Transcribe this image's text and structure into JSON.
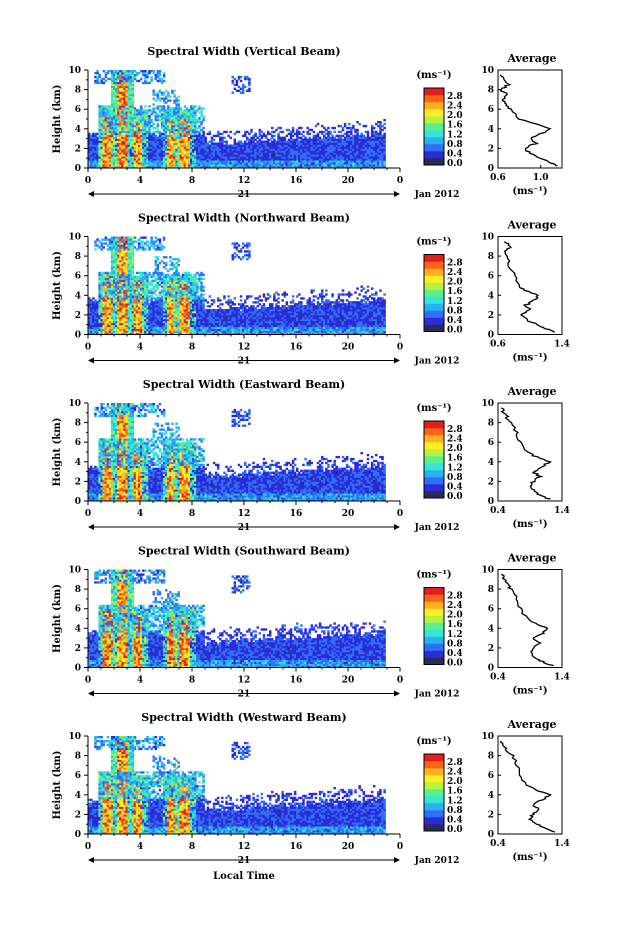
{
  "figure": {
    "xlabel": "Local Time",
    "day_label": "21",
    "date_label": "Jan 2012",
    "colorbar_unit": "(ms⁻¹)",
    "profile_title": "Average",
    "profile_xunit": "(ms⁻¹)"
  },
  "colorbar": {
    "range": [
      0.0,
      2.8
    ],
    "tick_labels": [
      "0.0",
      "0.4",
      "0.8",
      "1.2",
      "1.6",
      "2.0",
      "2.4",
      "2.8"
    ],
    "colors": [
      "#2a2a5a",
      "#2b2bd8",
      "#2f6ff5",
      "#27b3f2",
      "#35e6d6",
      "#5cf08a",
      "#b6f23f",
      "#ffee25",
      "#ffb01f",
      "#ff6317",
      "#e21f1f"
    ]
  },
  "chart_data": [
    {
      "type": "heatmap",
      "title": "Spectral Width (Vertical Beam)",
      "ylabel": "Height (km)",
      "xlim": [
        0,
        24
      ],
      "ylim": [
        0,
        10
      ],
      "xticks": [
        "0",
        "4",
        "8",
        "12",
        "16",
        "20",
        "0"
      ],
      "yticks": [
        "0",
        "2",
        "4",
        "6",
        "8",
        "10"
      ],
      "value_range": [
        0.0,
        2.8
      ],
      "profile": {
        "xlim": [
          0.6,
          1.2
        ],
        "xticks": [
          "0.6",
          "1.0"
        ],
        "yticks": [
          "0",
          "2",
          "4",
          "6",
          "8",
          "10"
        ],
        "points": [
          [
            1.15,
            0.2
          ],
          [
            1.1,
            0.5
          ],
          [
            1.0,
            1.0
          ],
          [
            0.9,
            1.5
          ],
          [
            0.85,
            2.0
          ],
          [
            0.95,
            2.5
          ],
          [
            0.9,
            3.0
          ],
          [
            1.0,
            3.5
          ],
          [
            1.1,
            4.0
          ],
          [
            0.95,
            4.5
          ],
          [
            0.8,
            5.0
          ],
          [
            0.72,
            6.0
          ],
          [
            0.68,
            6.5
          ],
          [
            0.65,
            7.0
          ],
          [
            0.7,
            7.5
          ],
          [
            0.62,
            8.0
          ],
          [
            0.7,
            8.5
          ],
          [
            0.66,
            9.0
          ],
          [
            0.62,
            9.5
          ]
        ]
      }
    },
    {
      "type": "heatmap",
      "title": "Spectral Width (Northward Beam)",
      "ylabel": "Height (km)",
      "xlim": [
        0,
        24
      ],
      "ylim": [
        0,
        10
      ],
      "xticks": [
        "0",
        "4",
        "8",
        "12",
        "16",
        "20",
        "0"
      ],
      "yticks": [
        "0",
        "2",
        "4",
        "6",
        "8",
        "10"
      ],
      "value_range": [
        0.0,
        2.8
      ],
      "profile": {
        "xlim": [
          0.6,
          1.4
        ],
        "xticks": [
          "0.6",
          "1.4"
        ],
        "yticks": [
          "0",
          "2",
          "4",
          "6",
          "8",
          "10"
        ],
        "points": [
          [
            1.3,
            0.2
          ],
          [
            1.2,
            0.6
          ],
          [
            1.1,
            1.0
          ],
          [
            0.95,
            1.5
          ],
          [
            0.9,
            2.0
          ],
          [
            1.0,
            2.5
          ],
          [
            0.95,
            3.0
          ],
          [
            1.05,
            3.5
          ],
          [
            1.1,
            4.0
          ],
          [
            0.95,
            4.5
          ],
          [
            0.85,
            5.0
          ],
          [
            0.8,
            6.0
          ],
          [
            0.75,
            7.0
          ],
          [
            0.72,
            8.0
          ],
          [
            0.7,
            8.5
          ],
          [
            0.75,
            9.0
          ],
          [
            0.68,
            9.5
          ]
        ]
      }
    },
    {
      "type": "heatmap",
      "title": "Spectral Width (Eastward Beam)",
      "ylabel": "Height (km)",
      "xlim": [
        0,
        24
      ],
      "ylim": [
        0,
        10
      ],
      "xticks": [
        "0",
        "4",
        "8",
        "12",
        "16",
        "20",
        "0"
      ],
      "yticks": [
        "0",
        "2",
        "4",
        "6",
        "8",
        "10"
      ],
      "value_range": [
        0.0,
        2.8
      ],
      "profile": {
        "xlim": [
          0.4,
          1.4
        ],
        "xticks": [
          "0.4",
          "1.4"
        ],
        "yticks": [
          "0",
          "2",
          "4",
          "6",
          "8",
          "10"
        ],
        "points": [
          [
            1.2,
            0.2
          ],
          [
            1.05,
            0.6
          ],
          [
            1.0,
            1.0
          ],
          [
            0.9,
            1.5
          ],
          [
            0.95,
            2.0
          ],
          [
            1.05,
            2.5
          ],
          [
            0.95,
            3.0
          ],
          [
            1.1,
            3.5
          ],
          [
            1.2,
            4.0
          ],
          [
            1.0,
            4.5
          ],
          [
            0.85,
            5.0
          ],
          [
            0.75,
            6.0
          ],
          [
            0.7,
            7.0
          ],
          [
            0.6,
            8.0
          ],
          [
            0.55,
            8.5
          ],
          [
            0.5,
            9.0
          ],
          [
            0.45,
            9.5
          ]
        ]
      }
    },
    {
      "type": "heatmap",
      "title": "Spectral Width (Southward Beam)",
      "ylabel": "Height (km)",
      "xlim": [
        0,
        24
      ],
      "ylim": [
        0,
        10
      ],
      "xticks": [
        "0",
        "4",
        "8",
        "12",
        "16",
        "20",
        "0"
      ],
      "yticks": [
        "0",
        "2",
        "4",
        "6",
        "8",
        "10"
      ],
      "value_range": [
        0.0,
        2.8
      ],
      "profile": {
        "xlim": [
          0.4,
          1.4
        ],
        "xticks": [
          "0.4",
          "1.4"
        ],
        "yticks": [
          "0",
          "2",
          "4",
          "6",
          "8",
          "10"
        ],
        "points": [
          [
            1.25,
            0.2
          ],
          [
            1.1,
            0.6
          ],
          [
            0.95,
            1.0
          ],
          [
            0.9,
            1.5
          ],
          [
            0.95,
            2.0
          ],
          [
            1.05,
            2.5
          ],
          [
            0.95,
            3.0
          ],
          [
            1.1,
            3.5
          ],
          [
            1.15,
            4.0
          ],
          [
            1.0,
            4.5
          ],
          [
            0.85,
            5.0
          ],
          [
            0.75,
            6.0
          ],
          [
            0.7,
            7.0
          ],
          [
            0.6,
            8.0
          ],
          [
            0.55,
            8.5
          ],
          [
            0.5,
            9.0
          ],
          [
            0.45,
            9.5
          ]
        ]
      }
    },
    {
      "type": "heatmap",
      "title": "Spectral Width (Westward Beam)",
      "ylabel": "Height (km)",
      "xlim": [
        0,
        24
      ],
      "ylim": [
        0,
        10
      ],
      "xticks": [
        "0",
        "4",
        "8",
        "12",
        "16",
        "20",
        "0"
      ],
      "yticks": [
        "0",
        "2",
        "4",
        "6",
        "8",
        "10"
      ],
      "value_range": [
        0.0,
        2.8
      ],
      "profile": {
        "xlim": [
          0.4,
          1.4
        ],
        "xticks": [
          "0.4",
          "1.4"
        ],
        "yticks": [
          "0",
          "2",
          "4",
          "6",
          "8",
          "10"
        ],
        "points": [
          [
            1.3,
            0.2
          ],
          [
            1.15,
            0.6
          ],
          [
            1.0,
            1.0
          ],
          [
            0.9,
            1.5
          ],
          [
            0.95,
            2.0
          ],
          [
            1.05,
            2.5
          ],
          [
            0.95,
            3.0
          ],
          [
            1.1,
            3.5
          ],
          [
            1.2,
            4.0
          ],
          [
            1.0,
            4.5
          ],
          [
            0.85,
            5.0
          ],
          [
            0.75,
            6.0
          ],
          [
            0.7,
            7.0
          ],
          [
            0.62,
            8.0
          ],
          [
            0.55,
            8.5
          ],
          [
            0.5,
            9.0
          ],
          [
            0.45,
            9.5
          ]
        ]
      }
    }
  ]
}
